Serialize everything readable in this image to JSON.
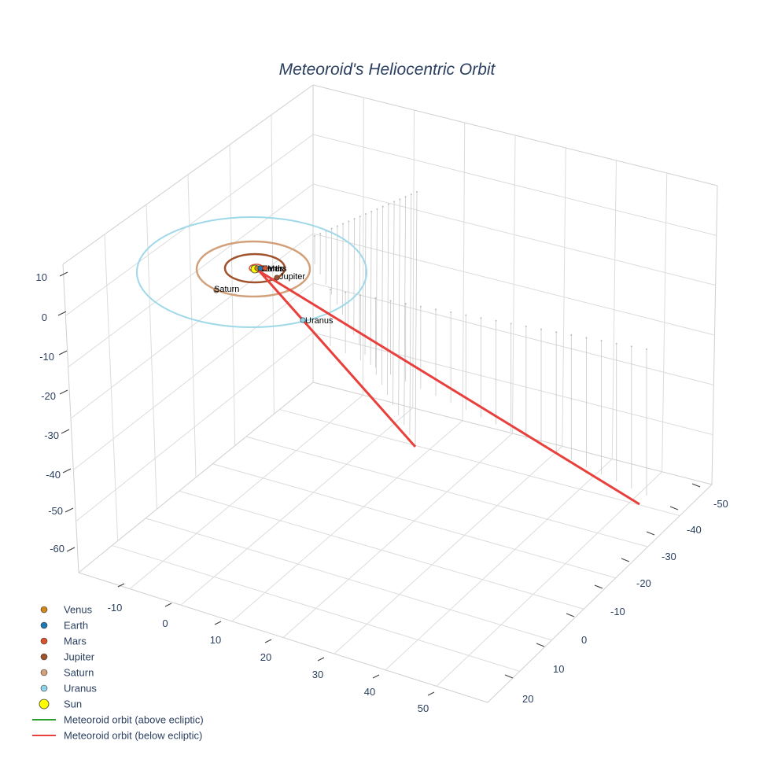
{
  "chart_data": {
    "type": "scatter3d",
    "title": "Meteoroid's Heliocentric Orbit",
    "axes": {
      "x": {
        "ticks": [
          "-50",
          "-40",
          "-30",
          "-20",
          "-10",
          "0",
          "10",
          "20"
        ]
      },
      "y": {
        "ticks": [
          "-10",
          "0",
          "10",
          "20",
          "30",
          "40",
          "50"
        ]
      },
      "z": {
        "ticks": [
          "10",
          "0",
          "-10",
          "-20",
          "-30",
          "-40",
          "-50",
          "-60"
        ]
      },
      "grid": true
    },
    "planets": [
      {
        "name": "Venus",
        "color": "#d2871e",
        "label": "Venus"
      },
      {
        "name": "Earth",
        "color": "#1f77b4",
        "label": "Earth"
      },
      {
        "name": "Mars",
        "color": "#d9542e",
        "label": "Mars"
      },
      {
        "name": "Jupiter",
        "color": "#a0522d",
        "label": "Jupiter",
        "orbit_color": "#a0522d"
      },
      {
        "name": "Saturn",
        "color": "#d2a07a",
        "label": "Saturn",
        "orbit_color": "#d2a07a"
      },
      {
        "name": "Uranus",
        "color": "#8fd3e8",
        "label": "Uranus",
        "orbit_color": "#9fd8e8"
      }
    ],
    "sun": {
      "name": "Sun",
      "color": "#ffff00"
    },
    "series": [
      {
        "name": "Meteoroid orbit (above ecliptic)",
        "color": "#2ca02c"
      },
      {
        "name": "Meteoroid orbit (below ecliptic)",
        "color": "#e8403c"
      }
    ],
    "legend": {
      "position": "bottom-left",
      "items": [
        {
          "label": "Venus",
          "kind": "marker",
          "color": "#d2871e"
        },
        {
          "label": "Earth",
          "kind": "marker",
          "color": "#1f77b4"
        },
        {
          "label": "Mars",
          "kind": "marker",
          "color": "#d9542e"
        },
        {
          "label": "Jupiter",
          "kind": "marker",
          "color": "#a0522d"
        },
        {
          "label": "Saturn",
          "kind": "marker",
          "color": "#d2a07a"
        },
        {
          "label": "Uranus",
          "kind": "marker",
          "color": "#8fd3e8"
        },
        {
          "label": "Sun",
          "kind": "sun",
          "color": "#ffff00"
        },
        {
          "label": "Meteoroid orbit (above ecliptic)",
          "kind": "line",
          "color": "#2ca02c"
        },
        {
          "label": "Meteoroid orbit (below ecliptic)",
          "kind": "line",
          "color": "#e8403c"
        }
      ]
    }
  }
}
